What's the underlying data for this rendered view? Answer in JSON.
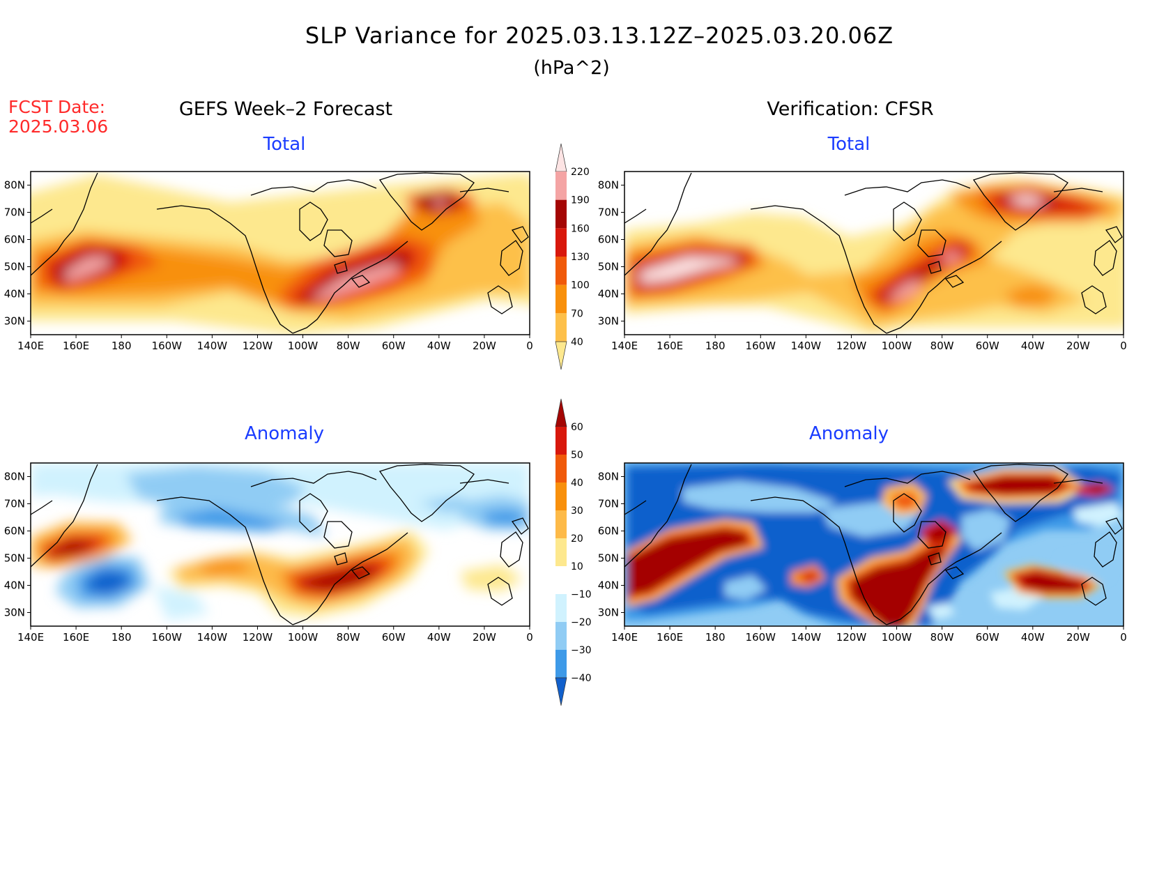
{
  "header": {
    "title": "SLP Variance for 2025.03.13.12Z–2025.03.20.06Z",
    "units": "(hPa^2)",
    "fcst_label": "FCST Date:",
    "fcst_date": "2025.03.06",
    "left_column": "GEFS Week–2 Forecast",
    "right_column": "Verification: CFSR"
  },
  "panels": {
    "top_left": "Total",
    "top_right": "Total",
    "bottom_left": "Anomaly",
    "bottom_right": "Anomaly"
  },
  "axes": {
    "lon_labels": [
      "140E",
      "160E",
      "180",
      "160W",
      "140W",
      "120W",
      "100W",
      "80W",
      "60W",
      "40W",
      "20W",
      "0"
    ],
    "lat_labels": [
      "80N",
      "70N",
      "60N",
      "50N",
      "40N",
      "30N"
    ]
  },
  "colorbars": {
    "total": {
      "labels": [
        "40",
        "70",
        "100",
        "130",
        "160",
        "190",
        "220"
      ],
      "colors": [
        "#fde88e",
        "#fdc04a",
        "#f8900c",
        "#f05a0a",
        "#d8180c",
        "#a40604",
        "#f4a4a4",
        "#fde4e4"
      ]
    },
    "anomaly": {
      "labels": [
        "60",
        "50",
        "40",
        "30",
        "20",
        "10",
        "−10",
        "−20",
        "−30",
        "−40"
      ],
      "colors": [
        "#a40604",
        "#d8180c",
        "#f05a0a",
        "#f8900c",
        "#fdba48",
        "#fde88e",
        "#ffffff",
        "#d0f2fe",
        "#90ccf4",
        "#3e9ae8",
        "#1160cc"
      ]
    }
  }
}
